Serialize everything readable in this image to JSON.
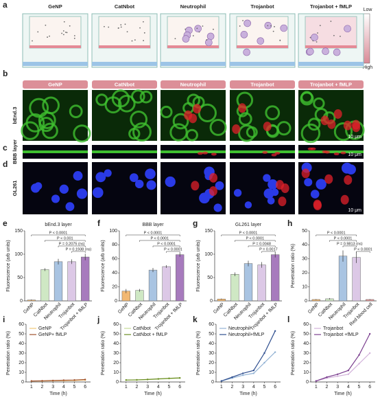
{
  "panel_labels": [
    "a",
    "b",
    "c",
    "d",
    "e",
    "f",
    "g",
    "h",
    "i",
    "j",
    "k",
    "l"
  ],
  "schematic": {
    "columns": [
      "GeNP",
      "CatNbot",
      "Neutrophil",
      "Trojanbot",
      "Trojanbot + fMLP"
    ],
    "scale": {
      "top": "Low",
      "bottom": "High"
    }
  },
  "micrographs": {
    "columns": [
      "GeNP",
      "CatNbot",
      "Neutrophil",
      "Trojanbot",
      "Trojanbot + fMLP"
    ],
    "rows": [
      {
        "label": "bEnd.3",
        "scale_bar": "10 μm"
      },
      {
        "label": "BBB layer",
        "scale_bar": "10 μm"
      },
      {
        "label": "GL261",
        "scale_bar": "10 μm"
      }
    ]
  },
  "chart_data": [
    {
      "type": "bar",
      "title": "bEnd.3 layer",
      "y_label": "Fluorescence (arb units)",
      "categories": [
        "GeNP",
        "CatNbot",
        "Neutrophil",
        "Trojanbot",
        "Trojanbot + fMLP"
      ],
      "values": [
        2,
        67,
        84,
        84,
        94
      ],
      "errors": [
        1,
        3,
        6,
        5,
        7
      ],
      "colors": [
        "#f2b872",
        "#cfe8c4",
        "#a9c4e2",
        "#dcc8e6",
        "#a77bbd"
      ],
      "ylim": [
        0,
        150
      ],
      "yticks": [
        0,
        50,
        100,
        150
      ],
      "annotations": [
        "P < 0.0001",
        "P < 0.001",
        "P = 0.2075 (ns)",
        "P = 0.1938 (ns)"
      ]
    },
    {
      "type": "bar",
      "title": "BBB layer",
      "y_label": "Fluorescence (arb units)",
      "categories": [
        "GeNP",
        "CatNbot",
        "Neutrophil",
        "Trojanbot",
        "Trojanbot + fMLP"
      ],
      "values": [
        14,
        15,
        44,
        49,
        66
      ],
      "errors": [
        3,
        2,
        3,
        2,
        3
      ],
      "colors": [
        "#f2b872",
        "#cfe8c4",
        "#a9c4e2",
        "#dcc8e6",
        "#a77bbd"
      ],
      "ylim": [
        0,
        100
      ],
      "yticks": [
        0,
        20,
        40,
        60,
        80,
        100
      ],
      "annotations": [
        "P < 0.0001",
        "P < 0.0001",
        "P < 0.0001",
        "P < 0.0001"
      ]
    },
    {
      "type": "bar",
      "title": "GL261 layer",
      "y_label": "Fluorescence (arb units)",
      "categories": [
        "GeNP",
        "CatNbot",
        "Neutrophil",
        "Trojanbot",
        "Trojanbot + fMLP"
      ],
      "values": [
        4,
        57,
        80,
        77,
        99
      ],
      "errors": [
        1,
        4,
        6,
        6,
        6
      ],
      "colors": [
        "#f2b872",
        "#cfe8c4",
        "#a9c4e2",
        "#dcc8e6",
        "#a77bbd"
      ],
      "ylim": [
        0,
        150
      ],
      "yticks": [
        0,
        50,
        100,
        150
      ],
      "annotations": [
        "P < 0.0001",
        "P < 0.0001",
        "P = 0.0048",
        "P = 0.0017"
      ]
    },
    {
      "type": "bar",
      "y_label": "Penetration ratio (%)",
      "categories": [
        "GeNP",
        "CatNbot",
        "Neutrophil",
        "Trojanbot",
        "Red blood cell"
      ],
      "values": [
        1,
        1.5,
        32,
        31,
        1
      ],
      "errors": [
        0.3,
        0.5,
        4,
        4,
        0.3
      ],
      "colors": [
        "#f2b872",
        "#cfe8c4",
        "#a9c4e2",
        "#dcc8e6",
        "#e59a9a"
      ],
      "ylim": [
        0,
        50
      ],
      "yticks": [
        0,
        10,
        20,
        30,
        40,
        50
      ],
      "annotations": [
        "P < 0.0001",
        "P < 0.0001",
        "P = 0.9813 (ns)",
        "P < 0.0001"
      ]
    },
    {
      "type": "line",
      "x_label": "Time (h)",
      "y_label": "Penetration ratio (%)",
      "x": [
        1,
        2,
        3,
        4,
        5,
        6
      ],
      "xlim": [
        0.5,
        6.5
      ],
      "xticks": [
        1,
        2,
        3,
        4,
        5,
        6
      ],
      "ylim": [
        0,
        60
      ],
      "yticks": [
        0,
        10,
        20,
        30,
        40,
        50,
        60
      ],
      "series": [
        {
          "name": "GeNP",
          "color": "#f0c878",
          "values": [
            1,
            1,
            1.2,
            1.3,
            1.5,
            2
          ]
        },
        {
          "name": "GeNP+ fMLP",
          "color": "#a0522d",
          "values": [
            1,
            1.2,
            1.5,
            1.8,
            2,
            2.5
          ]
        }
      ]
    },
    {
      "type": "line",
      "x_label": "Time (h)",
      "y_label": "Penetration ratio (%)",
      "x": [
        1,
        2,
        3,
        4,
        5,
        6
      ],
      "xlim": [
        0.5,
        6.5
      ],
      "xticks": [
        1,
        2,
        3,
        4,
        5,
        6
      ],
      "ylim": [
        0,
        60
      ],
      "yticks": [
        0,
        10,
        20,
        30,
        40,
        50,
        60
      ],
      "series": [
        {
          "name": "CatNbot",
          "color": "#c4dc96",
          "values": [
            2,
            2,
            2.5,
            3,
            3.5,
            4
          ]
        },
        {
          "name": "CatNbot + fMLP",
          "color": "#6b8e23",
          "values": [
            2,
            2.2,
            2.6,
            3.2,
            3.8,
            4.2
          ]
        }
      ]
    },
    {
      "type": "line",
      "x_label": "Time (h)",
      "y_label": "Penetration ratio (%)",
      "x": [
        1,
        2,
        3,
        4,
        5,
        6
      ],
      "xlim": [
        0.5,
        6.5
      ],
      "xticks": [
        1,
        2,
        3,
        4,
        5,
        6
      ],
      "ylim": [
        0,
        60
      ],
      "yticks": [
        0,
        10,
        20,
        30,
        40,
        50,
        60
      ],
      "series": [
        {
          "name": "Neutrophil",
          "color": "#92b2d4",
          "values": [
            1,
            4,
            7,
            9,
            20,
            31
          ]
        },
        {
          "name": "Neutrophil+fMLP",
          "color": "#2f4f8f",
          "values": [
            1,
            5,
            9,
            12,
            30,
            53
          ]
        }
      ]
    },
    {
      "type": "line",
      "x_label": "Time (h)",
      "y_label": "Penetration ratio (%)",
      "x": [
        1,
        2,
        3,
        4,
        5,
        6
      ],
      "xlim": [
        0.5,
        6.5
      ],
      "xticks": [
        1,
        2,
        3,
        4,
        5,
        6
      ],
      "ylim": [
        0,
        60
      ],
      "yticks": [
        0,
        10,
        20,
        30,
        40,
        50,
        60
      ],
      "series": [
        {
          "name": "Trojanbot",
          "color": "#d2b2da",
          "values": [
            1,
            4,
            6,
            8,
            19,
            30
          ]
        },
        {
          "name": "Trojanbot +fMLP",
          "color": "#7b3f8f",
          "values": [
            1,
            5,
            8,
            12,
            28,
            50
          ]
        }
      ]
    }
  ]
}
